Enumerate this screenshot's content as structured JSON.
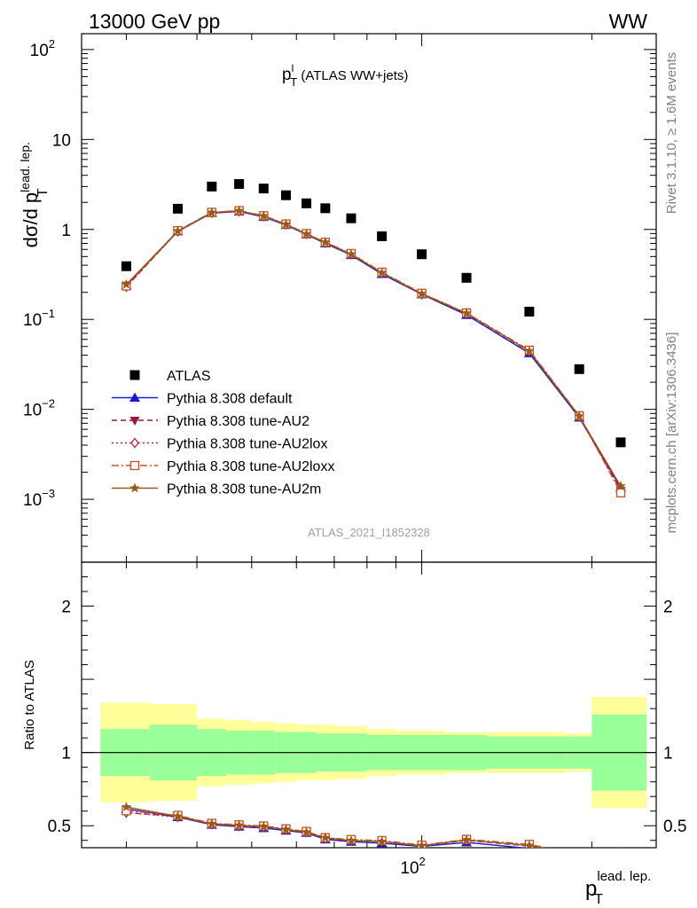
{
  "header": {
    "left": "13000 GeV pp",
    "right": "WW"
  },
  "main_title": {
    "base": "p",
    "sup": "l",
    "sub": "T",
    "rest": " (ATLAS WW+jets)"
  },
  "ylabel": {
    "text": "dσ/d p",
    "sup": "lead. lep.",
    "sub": "T"
  },
  "xlabel": {
    "base": "p",
    "sup": "lead. lep.",
    "sub": "T"
  },
  "ratio_ylabel": "Ratio to ATLAS",
  "side_text": {
    "rivet": "Rivet 3.1.10, ≥ 1.6M events",
    "mcplots": "mcplots.cern.ch [arXiv:1306.3436]"
  },
  "watermark": "ATLAS_2021_I1852328",
  "colors": {
    "data": "#000000",
    "default": "#1a1ad6",
    "au2": "#9e1446",
    "au2lox": "#b8203e",
    "au2loxx": "#c8501e",
    "au2m": "#9a5a1c",
    "band_inner": "#99ff99",
    "band_outer": "#ffff99"
  },
  "legend": [
    {
      "key": "data",
      "label": "ATLAS"
    },
    {
      "key": "default",
      "label": "Pythia 8.308 default"
    },
    {
      "key": "au2",
      "label": "Pythia 8.308 tune-AU2"
    },
    {
      "key": "au2lox",
      "label": "Pythia 8.308 tune-AU2lox"
    },
    {
      "key": "au2loxx",
      "label": "Pythia 8.308 tune-AU2loxx"
    },
    {
      "key": "au2m",
      "label": "Pythia 8.308 tune-AU2m"
    }
  ],
  "chart_data": {
    "type": "scatter",
    "x_scale": "log",
    "main": {
      "y_scale": "log",
      "ylim": [
        0.0002,
        150
      ],
      "ytick_labels": [
        {
          "v": 0.001,
          "base": "10",
          "exp": "−3"
        },
        {
          "v": 0.01,
          "base": "10",
          "exp": "−2"
        },
        {
          "v": 0.1,
          "base": "10",
          "exp": "−1"
        },
        {
          "v": 1,
          "base": "1",
          "exp": ""
        },
        {
          "v": 10,
          "base": "10",
          "exp": ""
        },
        {
          "v": 100,
          "base": "10",
          "exp": "2"
        }
      ]
    },
    "ratio": {
      "ylim": [
        0.35,
        2.3
      ],
      "yticks": [
        0.5,
        1,
        2
      ],
      "ytick_labels": [
        "0.5",
        "1",
        "2"
      ],
      "bins": [
        [
          27,
          33
        ],
        [
          33,
          40
        ],
        [
          40,
          45
        ],
        [
          45,
          50
        ],
        [
          50,
          55
        ],
        [
          55,
          60
        ],
        [
          60,
          65
        ],
        [
          65,
          70
        ],
        [
          70,
          80
        ],
        [
          80,
          90
        ],
        [
          90,
          110
        ],
        [
          110,
          130
        ],
        [
          130,
          180
        ],
        [
          180,
          200
        ],
        [
          200,
          250
        ]
      ],
      "inner": [
        0.16,
        0.19,
        0.16,
        0.15,
        0.15,
        0.14,
        0.14,
        0.13,
        0.13,
        0.12,
        0.12,
        0.12,
        0.11,
        0.11,
        0.26
      ],
      "outer": [
        0.34,
        0.33,
        0.23,
        0.22,
        0.21,
        0.2,
        0.19,
        0.19,
        0.18,
        0.16,
        0.15,
        0.14,
        0.14,
        0.13,
        0.38
      ]
    },
    "xlim": [
      25,
      260
    ],
    "xtick_labels": [
      {
        "v": 100,
        "base": "10",
        "exp": "2"
      }
    ],
    "x": [
      30,
      37,
      42.5,
      47.5,
      52.5,
      57.5,
      62.5,
      67.5,
      75,
      85,
      100,
      120,
      155,
      190,
      225
    ],
    "series": [
      {
        "key": "data",
        "name": "ATLAS",
        "values": [
          0.39,
          1.7,
          3.0,
          3.2,
          2.85,
          2.4,
          1.95,
          1.72,
          1.33,
          0.84,
          0.53,
          0.29,
          0.122,
          0.028,
          0.0043
        ]
      },
      {
        "key": "default",
        "name": "Pythia 8.308 default",
        "values": [
          0.24,
          0.95,
          1.52,
          1.58,
          1.38,
          1.12,
          0.88,
          0.7,
          0.52,
          0.32,
          0.19,
          0.112,
          0.042,
          0.0081,
          0.00135
        ]
      },
      {
        "key": "au2",
        "name": "Pythia 8.308 tune-AU2",
        "values": [
          0.23,
          0.96,
          1.54,
          1.6,
          1.4,
          1.14,
          0.89,
          0.71,
          0.53,
          0.33,
          0.192,
          0.116,
          0.044,
          0.0083,
          0.00125
        ]
      },
      {
        "key": "au2lox",
        "name": "Pythia 8.308 tune-AU2lox",
        "values": [
          0.23,
          0.95,
          1.53,
          1.59,
          1.4,
          1.14,
          0.89,
          0.71,
          0.53,
          0.33,
          0.19,
          0.117,
          0.0445,
          0.0084,
          0.0013
        ]
      },
      {
        "key": "au2loxx",
        "name": "Pythia 8.308 tune-AU2loxx",
        "values": [
          0.235,
          0.97,
          1.55,
          1.62,
          1.42,
          1.15,
          0.9,
          0.72,
          0.54,
          0.335,
          0.195,
          0.118,
          0.0455,
          0.0085,
          0.00118
        ]
      },
      {
        "key": "au2m",
        "name": "Pythia 8.308 tune-AU2m",
        "values": [
          0.245,
          0.96,
          1.54,
          1.61,
          1.41,
          1.14,
          0.89,
          0.72,
          0.53,
          0.33,
          0.193,
          0.117,
          0.0445,
          0.0084,
          0.0014
        ]
      }
    ]
  }
}
